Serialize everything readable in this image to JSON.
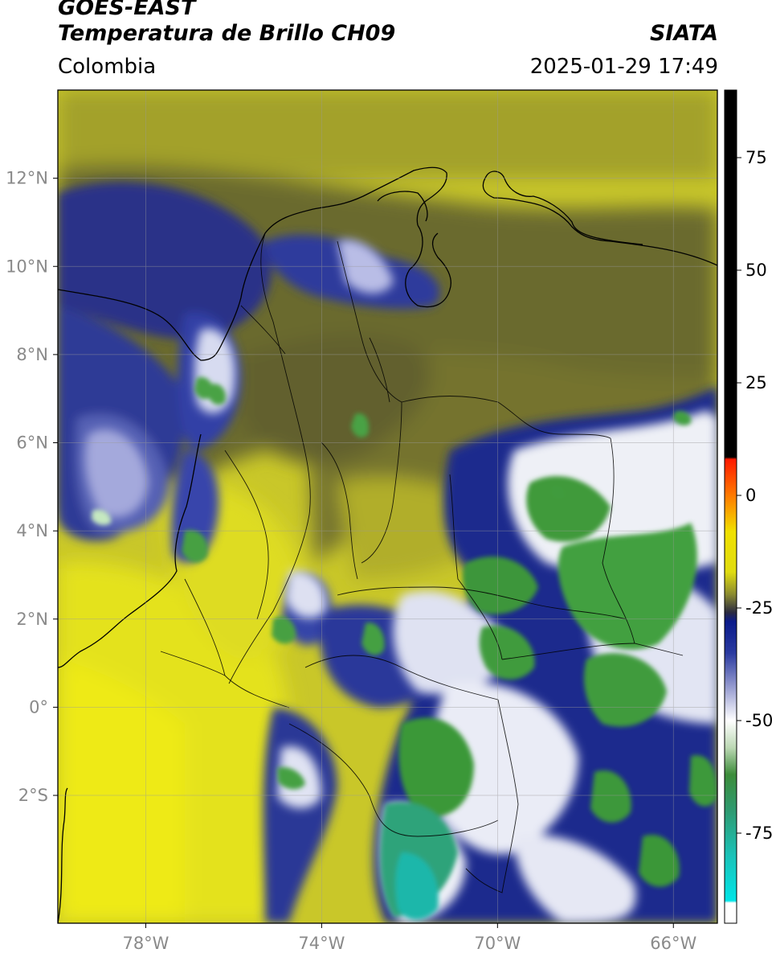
{
  "header": {
    "title_line1": "GOES-EAST",
    "title_line2": "Temperatura de Brillo CH09",
    "brand": "SIATA",
    "region": "Colombia",
    "timestamp": "2025-01-29 17:49"
  },
  "map": {
    "extent": {
      "lon_min": -80.0,
      "lon_max": -65.0,
      "lat_min": -4.9,
      "lat_max": 14.0
    },
    "lat_ticks": [
      {
        "value": 12,
        "label": "12°N"
      },
      {
        "value": 10,
        "label": "10°N"
      },
      {
        "value": 8,
        "label": "8°N"
      },
      {
        "value": 6,
        "label": "6°N"
      },
      {
        "value": 4,
        "label": "4°N"
      },
      {
        "value": 2,
        "label": "2°N"
      },
      {
        "value": 0,
        "label": "0°"
      },
      {
        "value": -2,
        "label": "2°S"
      }
    ],
    "lon_ticks": [
      {
        "value": -78,
        "label": "78°W"
      },
      {
        "value": -74,
        "label": "74°W"
      },
      {
        "value": -70,
        "label": "70°W"
      },
      {
        "value": -66,
        "label": "66°W"
      }
    ],
    "colors": {
      "warm_yellow": "#d8d62a",
      "olive": "#9a9a2c",
      "dark_olive": "#55552e",
      "navy": "#1e2a8a",
      "white_cloud": "#e8e8f2",
      "green_cloud": "#3f9a3a",
      "teal_cloud": "#1fb0a0"
    }
  },
  "colorbar": {
    "vmin": -95,
    "vmax": 90,
    "ticks": [
      {
        "value": 75,
        "label": "75"
      },
      {
        "value": 50,
        "label": "50"
      },
      {
        "value": 25,
        "label": "25"
      },
      {
        "value": 0,
        "label": "0"
      },
      {
        "value": -25,
        "label": "-25"
      },
      {
        "value": -50,
        "label": "-50"
      },
      {
        "value": -75,
        "label": "-75"
      }
    ],
    "stops": [
      {
        "value": 90,
        "color": "#000000"
      },
      {
        "value": 8.5,
        "color": "#000000"
      },
      {
        "value": 8,
        "color": "#ff1a00"
      },
      {
        "value": 0,
        "color": "#ff7a00"
      },
      {
        "value": -8,
        "color": "#f0e000"
      },
      {
        "value": -17,
        "color": "#e0dc10"
      },
      {
        "value": -22,
        "color": "#8a8a30"
      },
      {
        "value": -26,
        "color": "#2a2a40"
      },
      {
        "value": -28,
        "color": "#0a1a8a"
      },
      {
        "value": -35,
        "color": "#2a3aa0"
      },
      {
        "value": -42,
        "color": "#8e94cc"
      },
      {
        "value": -50,
        "color": "#ffffff"
      },
      {
        "value": -56,
        "color": "#bcd8b4"
      },
      {
        "value": -62,
        "color": "#3c8c3a"
      },
      {
        "value": -70,
        "color": "#2e9a70"
      },
      {
        "value": -80,
        "color": "#1ac2b8"
      },
      {
        "value": -90,
        "color": "#00e4e6"
      },
      {
        "value": -90.5,
        "color": "#ffffff"
      },
      {
        "value": -95,
        "color": "#ffffff"
      }
    ]
  }
}
